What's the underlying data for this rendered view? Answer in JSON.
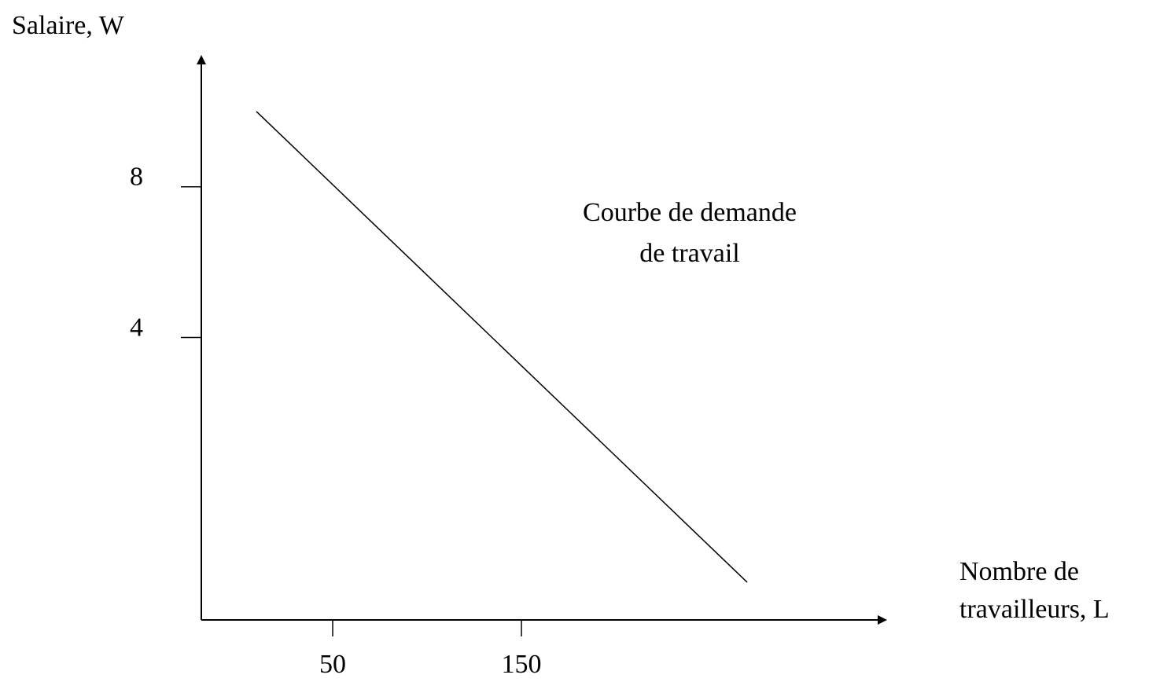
{
  "chart_data": {
    "type": "line",
    "y_label": "Salaire, W",
    "x_label": [
      "Nombre de",
      "travailleurs, L"
    ],
    "annotation": [
      "Courbe de demande",
      "de travail"
    ],
    "x": [
      9.6,
      269.6
    ],
    "series": [
      {
        "color": "#000000",
        "values": [
          10,
          -2.5
        ]
      }
    ],
    "xlim": [
      -19.6,
      342.5
    ],
    "ylim": [
      -3.5,
      11.5
    ],
    "xticks": [
      50,
      150
    ],
    "yticks": [
      4,
      8
    ]
  }
}
